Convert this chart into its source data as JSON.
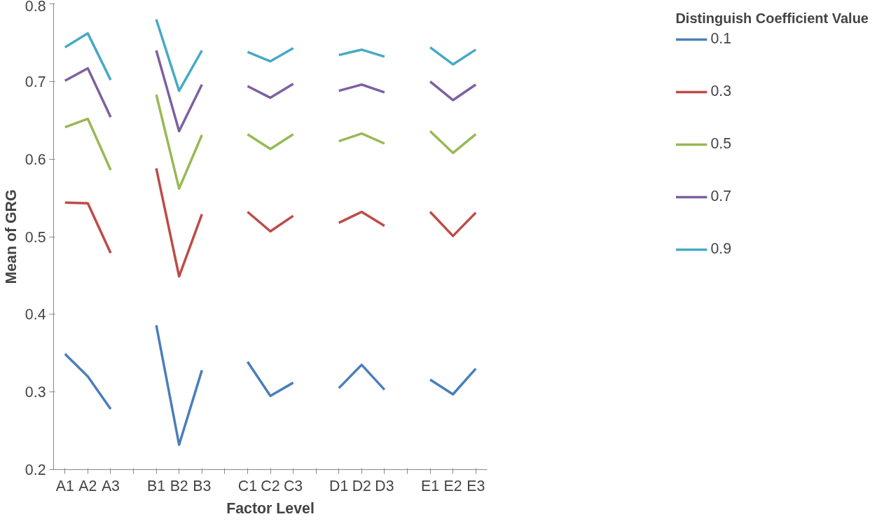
{
  "chart_data": {
    "type": "line",
    "xlabel": "Factor Level",
    "ylabel": "Mean of GRG",
    "legend_title": "Distinguish Coefficient Value",
    "categories": [
      "A1",
      "A2",
      "A3",
      null,
      "B1",
      "B2",
      "B3",
      null,
      "C1",
      "C2",
      "C3",
      null,
      "D1",
      "D2",
      "D3",
      null,
      "E1",
      "E2",
      "E3"
    ],
    "series": [
      {
        "name": "0.1",
        "color": "#4a7ebb",
        "values": [
          0.349,
          0.32,
          0.278,
          null,
          0.386,
          0.232,
          0.328,
          null,
          0.339,
          0.295,
          0.312,
          null,
          0.305,
          0.335,
          0.303,
          null,
          0.316,
          0.297,
          0.33
        ]
      },
      {
        "name": "0.3",
        "color": "#be4b48",
        "values": [
          0.544,
          0.543,
          0.479,
          null,
          0.588,
          0.449,
          0.529,
          null,
          0.532,
          0.507,
          0.527,
          null,
          0.518,
          0.532,
          0.514,
          null,
          0.532,
          0.501,
          0.531
        ]
      },
      {
        "name": "0.5",
        "color": "#98b954",
        "values": [
          0.641,
          0.652,
          0.586,
          null,
          0.683,
          0.562,
          0.631,
          null,
          0.632,
          0.613,
          0.632,
          null,
          0.623,
          0.633,
          0.62,
          null,
          0.636,
          0.608,
          0.632
        ]
      },
      {
        "name": "0.7",
        "color": "#7d60a0",
        "values": [
          0.701,
          0.717,
          0.654,
          null,
          0.74,
          0.636,
          0.696,
          null,
          0.694,
          0.679,
          0.697,
          null,
          0.688,
          0.696,
          0.686,
          null,
          0.7,
          0.676,
          0.696
        ]
      },
      {
        "name": "0.9",
        "color": "#46aac5",
        "values": [
          0.744,
          0.762,
          0.702,
          null,
          0.78,
          0.688,
          0.74,
          null,
          0.738,
          0.726,
          0.743,
          null,
          0.734,
          0.741,
          0.732,
          null,
          0.744,
          0.722,
          0.741
        ]
      }
    ],
    "ylim": [
      0.2,
      0.8
    ],
    "yticks": [
      0.2,
      0.3,
      0.4,
      0.5,
      0.6,
      0.7,
      0.8
    ],
    "grid": false,
    "legend": "right",
    "marker": "none",
    "line_style": "solid"
  }
}
